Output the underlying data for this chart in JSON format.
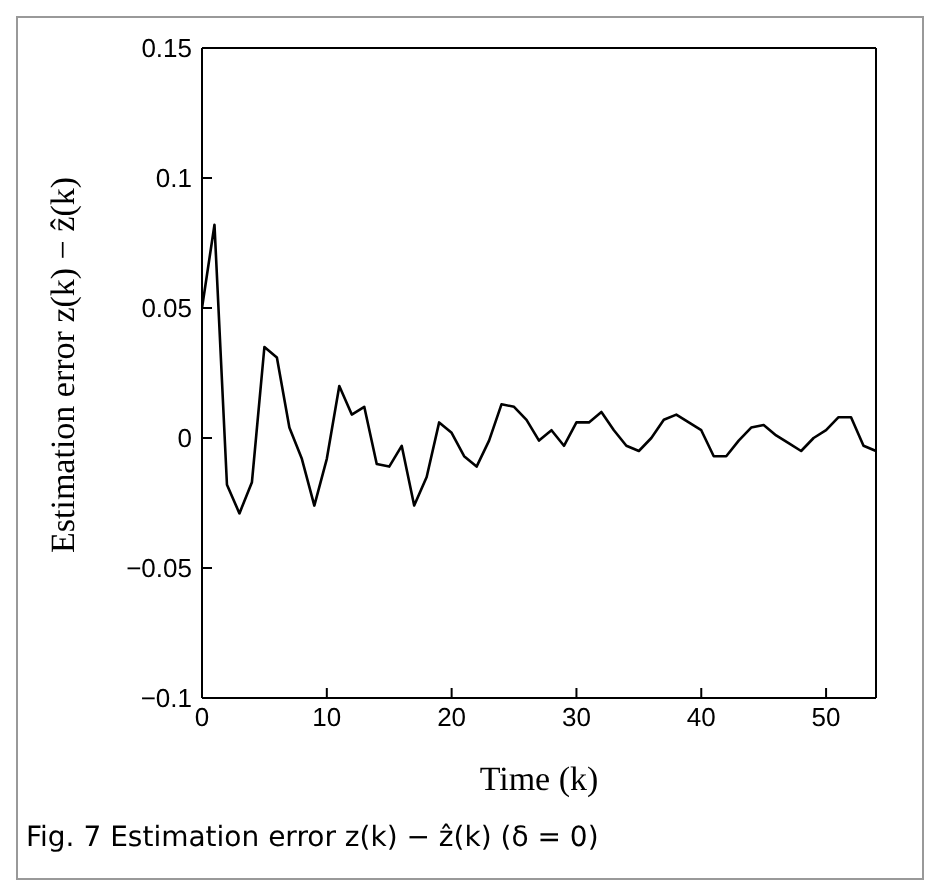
{
  "chart_data": {
    "type": "line",
    "xlabel": "Time (k)",
    "ylabel": "Estimation error z(k) − ẑ(k)",
    "annotations": [
      "Fig. 7 Estimation error z(k) − ẑ(k) (δ = 0)"
    ],
    "x": [
      0,
      1,
      2,
      3,
      4,
      5,
      6,
      7,
      8,
      9,
      10,
      11,
      12,
      13,
      14,
      15,
      16,
      17,
      18,
      19,
      20,
      21,
      22,
      23,
      24,
      25,
      26,
      27,
      28,
      29,
      30,
      31,
      32,
      33,
      34,
      35,
      36,
      37,
      38,
      39,
      40,
      41,
      42,
      43,
      44,
      45,
      46,
      47,
      48,
      49,
      50,
      51,
      52,
      53,
      54
    ],
    "series": [
      {
        "color": "#000000",
        "values": [
          0.05,
          0.082,
          -0.018,
          -0.029,
          -0.017,
          0.035,
          0.031,
          0.004,
          -0.008,
          -0.026,
          -0.008,
          0.02,
          0.009,
          0.012,
          -0.01,
          -0.011,
          -0.003,
          -0.026,
          -0.015,
          0.006,
          0.002,
          -0.007,
          -0.011,
          -0.001,
          0.013,
          0.012,
          0.007,
          -0.001,
          0.003,
          -0.003,
          0.006,
          0.006,
          0.01,
          0.003,
          -0.003,
          -0.005,
          0,
          0.007,
          0.009,
          0.006,
          0.003,
          -0.007,
          -0.007,
          -0.001,
          0.004,
          0.005,
          0.001,
          -0.002,
          -0.005,
          0,
          0.003,
          0.008,
          0.008,
          -0.003,
          -0.005
        ]
      }
    ],
    "xlim": [
      0,
      54
    ],
    "xticks": [
      0,
      10,
      20,
      30,
      40,
      50
    ],
    "ylim": [
      -0.1,
      0.15
    ],
    "yticks": [
      -0.1,
      -0.05,
      0,
      0.05,
      0.1,
      0.15
    ],
    "grid": false,
    "legend": false,
    "marker": "none",
    "line_style": "solid"
  }
}
